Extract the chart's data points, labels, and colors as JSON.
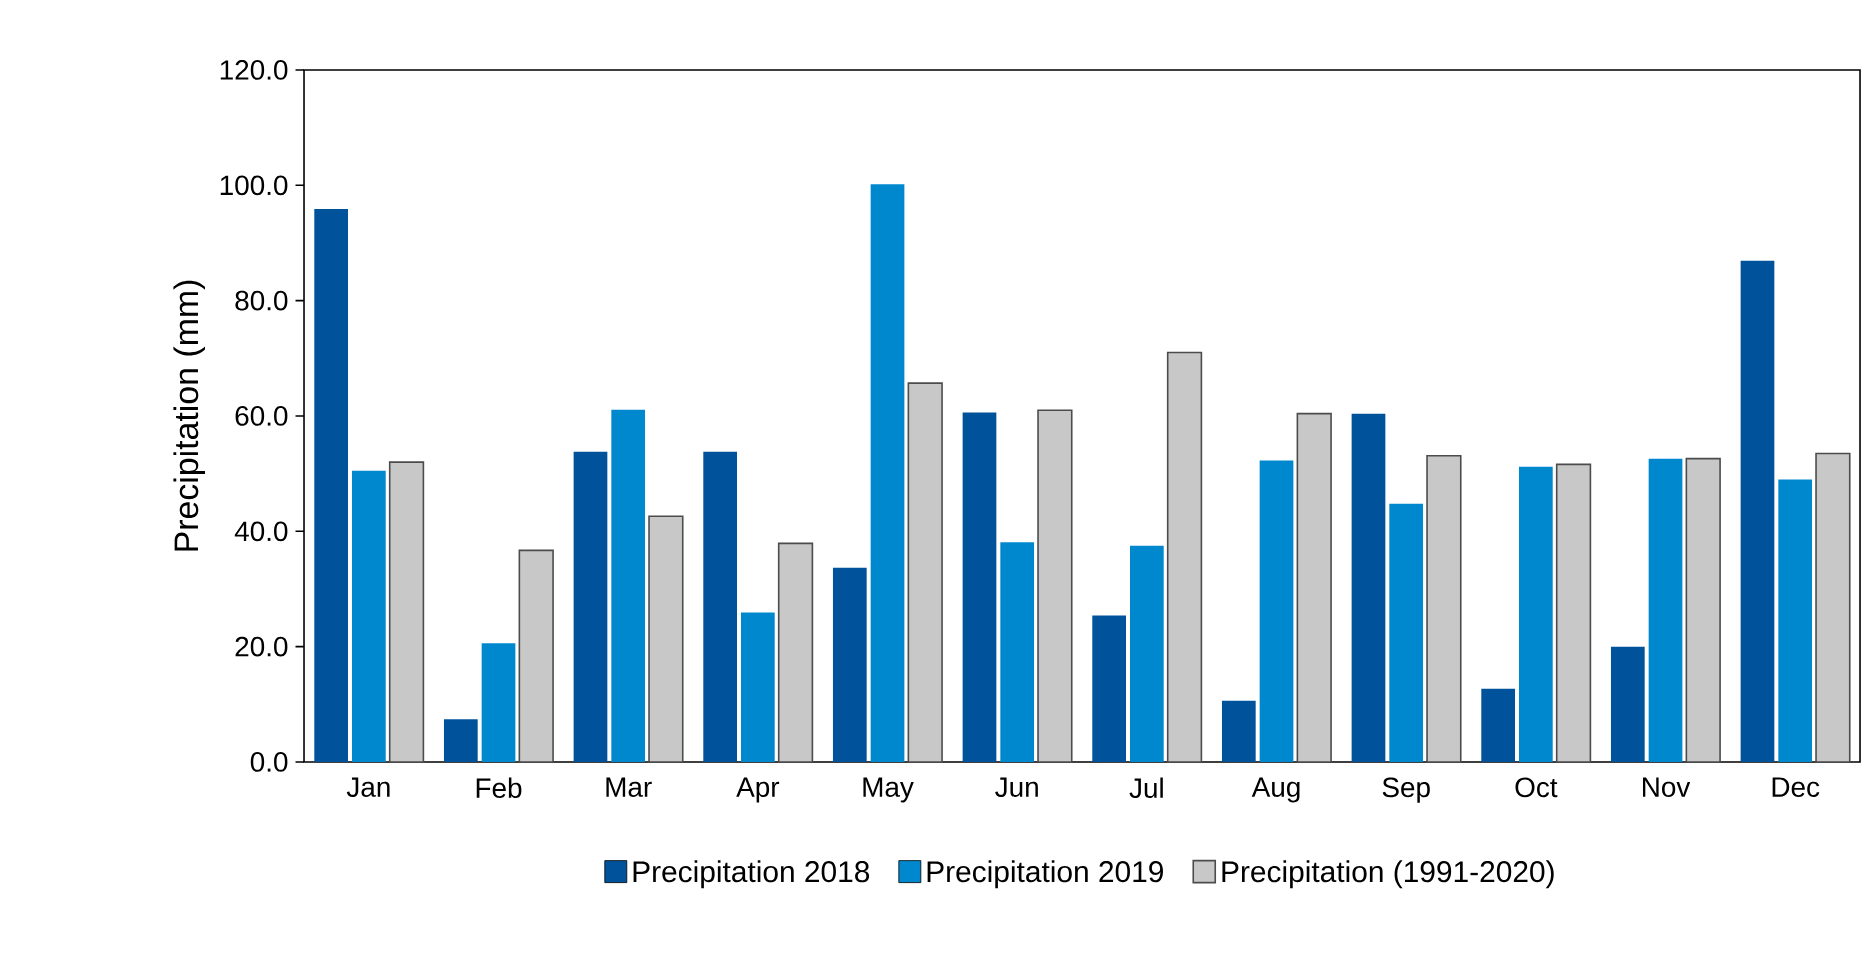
{
  "chart_data": {
    "type": "bar",
    "ylabel": "Precipitation (mm)",
    "categories": [
      "Jan",
      "Feb",
      "Mar",
      "Apr",
      "May",
      "Jun",
      "Jul",
      "Aug",
      "Sep",
      "Oct",
      "Nov",
      "Dec"
    ],
    "series": [
      {
        "name": "Precipitation 2018",
        "color": "#00529b",
        "values": [
          95.9,
          7.4,
          53.8,
          53.8,
          33.7,
          60.6,
          25.4,
          10.6,
          60.4,
          12.7,
          20.0,
          86.9
        ]
      },
      {
        "name": "Precipitation 2019",
        "color": "#0088cf",
        "values": [
          50.5,
          20.6,
          61.1,
          25.9,
          100.2,
          38.1,
          37.5,
          52.3,
          44.8,
          51.2,
          52.6,
          49.0
        ]
      },
      {
        "name": "Precipitation (1991-2020)",
        "color": "#c8c8c8",
        "values": [
          52.0,
          36.7,
          42.6,
          37.9,
          65.7,
          61.0,
          71.0,
          60.4,
          53.1,
          51.6,
          52.6,
          53.5
        ]
      }
    ],
    "ylim": [
      0,
      120
    ],
    "yticks": [
      {
        "value": 0,
        "label": "0.0"
      },
      {
        "value": 20,
        "label": "20.0"
      },
      {
        "value": 40,
        "label": "40.0"
      },
      {
        "value": 60,
        "label": "60.0"
      },
      {
        "value": 80,
        "label": "80.0"
      },
      {
        "value": 100,
        "label": "100.0"
      },
      {
        "value": 120,
        "label": "120.0"
      }
    ],
    "grid": false,
    "legend": "bottom"
  }
}
